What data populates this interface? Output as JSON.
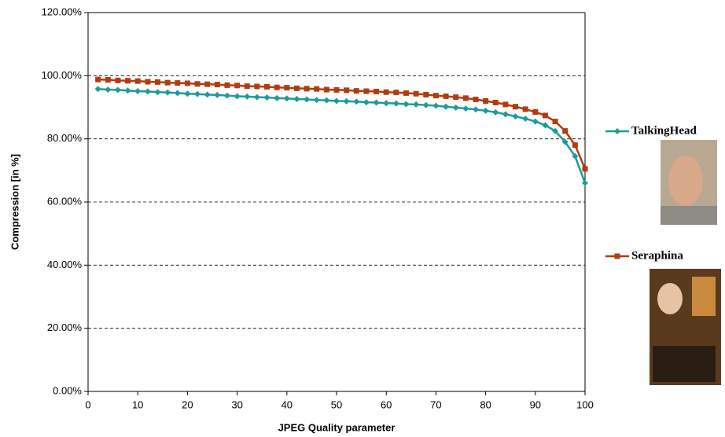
{
  "chart_data": {
    "type": "line",
    "x_label": "JPEG Quality parameter",
    "y_label": "Compression [in %]",
    "x": [
      2,
      4,
      6,
      8,
      10,
      12,
      14,
      16,
      18,
      20,
      22,
      24,
      26,
      28,
      30,
      32,
      34,
      36,
      38,
      40,
      42,
      44,
      46,
      48,
      50,
      52,
      54,
      56,
      58,
      60,
      62,
      64,
      66,
      68,
      70,
      72,
      74,
      76,
      78,
      80,
      82,
      84,
      86,
      88,
      90,
      92,
      94,
      96,
      98,
      100
    ],
    "series": [
      {
        "name": "TalkingHead",
        "color": "#1f9a9a",
        "marker": "diamond",
        "values": [
          95.8,
          95.6,
          95.5,
          95.3,
          95.1,
          95.0,
          94.8,
          94.7,
          94.5,
          94.3,
          94.2,
          94.0,
          93.9,
          93.7,
          93.5,
          93.4,
          93.2,
          93.1,
          92.9,
          92.8,
          92.6,
          92.5,
          92.3,
          92.2,
          92.0,
          91.9,
          91.8,
          91.6,
          91.5,
          91.3,
          91.2,
          91.0,
          90.9,
          90.7,
          90.5,
          90.2,
          89.9,
          89.6,
          89.3,
          88.9,
          88.4,
          87.8,
          87.1,
          86.4,
          85.5,
          84.3,
          82.5,
          79.0,
          74.5,
          66.0
        ]
      },
      {
        "name": "Seraphina",
        "color": "#b23c10",
        "marker": "square",
        "values": [
          98.8,
          98.7,
          98.5,
          98.4,
          98.3,
          98.1,
          98.0,
          97.8,
          97.7,
          97.6,
          97.4,
          97.3,
          97.2,
          97.0,
          96.9,
          96.7,
          96.6,
          96.5,
          96.3,
          96.2,
          96.0,
          95.9,
          95.8,
          95.6,
          95.5,
          95.4,
          95.2,
          95.1,
          95.0,
          94.8,
          94.7,
          94.5,
          94.3,
          94.0,
          93.7,
          93.5,
          93.2,
          92.9,
          92.5,
          92.0,
          91.5,
          90.9,
          90.2,
          89.4,
          88.5,
          87.4,
          85.5,
          82.5,
          78.0,
          70.5
        ]
      }
    ],
    "xlim": [
      0,
      100
    ],
    "xticks": [
      0,
      10,
      20,
      30,
      40,
      50,
      60,
      70,
      80,
      90,
      100
    ],
    "ylim": [
      0,
      120
    ],
    "yticks": [
      {
        "value": 0,
        "label": "0.00%"
      },
      {
        "value": 20,
        "label": "20.00%"
      },
      {
        "value": 40,
        "label": "40.00%"
      },
      {
        "value": 60,
        "label": "60.00%"
      },
      {
        "value": 80,
        "label": "80.00%"
      },
      {
        "value": 100,
        "label": "100.00%"
      },
      {
        "value": 120,
        "label": "120.00%"
      }
    ],
    "grid": true,
    "legend": "right"
  }
}
